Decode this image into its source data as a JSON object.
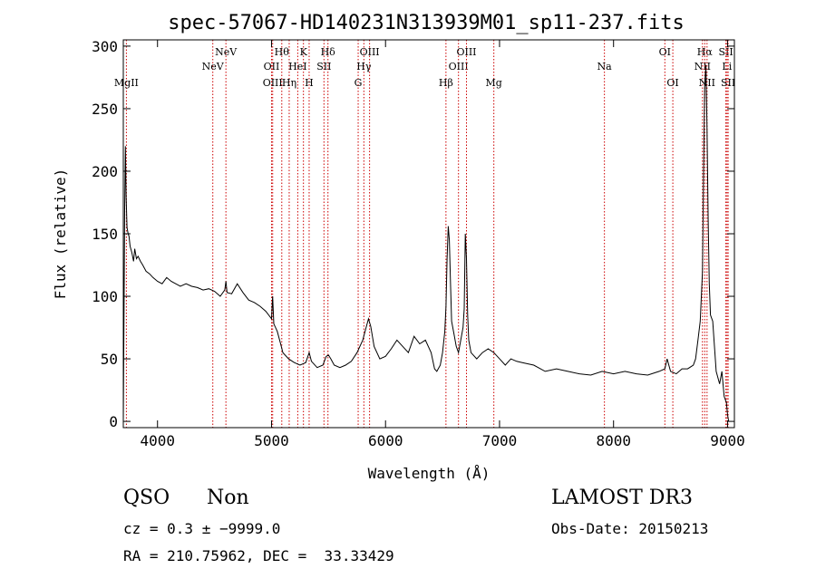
{
  "chart_data": {
    "type": "line",
    "title": "spec-57067-HD140231N313939M01_sp11-237.fits",
    "xlabel": "Wavelength (Å)",
    "ylabel": "Flux (relative)",
    "xlim": [
      3700,
      9060
    ],
    "ylim": [
      -5,
      305
    ],
    "xticks": [
      4000,
      5000,
      6000,
      7000,
      8000,
      9000
    ],
    "yticks": [
      0,
      50,
      100,
      150,
      200,
      250,
      300
    ],
    "grid": false,
    "line_color": "#000000",
    "marker_color": "#cc0000",
    "series": [
      {
        "x": [
          3700,
          3712,
          3718,
          3725,
          3733,
          3742,
          3750,
          3760,
          3775,
          3790,
          3800,
          3815,
          3830,
          3850,
          3870,
          3900,
          3930,
          3960,
          4000,
          4040,
          4080,
          4120,
          4160,
          4200,
          4250,
          4300,
          4350,
          4400,
          4450,
          4500,
          4550,
          4590,
          4600,
          4610,
          4650,
          4700,
          4750,
          4800,
          4850,
          4900,
          4950,
          5000,
          5010,
          5020,
          5050,
          5080,
          5100,
          5150,
          5200,
          5250,
          5300,
          5330,
          5350,
          5400,
          5450,
          5480,
          5500,
          5520,
          5550,
          5600,
          5650,
          5700,
          5750,
          5800,
          5830,
          5850,
          5870,
          5900,
          5950,
          6000,
          6050,
          6100,
          6150,
          6200,
          6250,
          6300,
          6350,
          6400,
          6430,
          6450,
          6480,
          6500,
          6520,
          6530,
          6540,
          6550,
          6560,
          6570,
          6580,
          6600,
          6620,
          6640,
          6660,
          6680,
          6690,
          6700,
          6710,
          6720,
          6730,
          6750,
          6800,
          6850,
          6900,
          6950,
          7000,
          7050,
          7100,
          7150,
          7200,
          7300,
          7400,
          7500,
          7600,
          7700,
          7800,
          7900,
          8000,
          8100,
          8200,
          8300,
          8400,
          8450,
          8470,
          8500,
          8550,
          8600,
          8650,
          8700,
          8720,
          8740,
          8760,
          8780,
          8790,
          8800,
          8810,
          8820,
          8830,
          8840,
          8850,
          8870,
          8900,
          8930,
          8950,
          8970,
          8990,
          9000,
          9010
        ],
        "y": [
          0,
          170,
          220,
          180,
          155,
          150,
          148,
          140,
          135,
          128,
          138,
          130,
          132,
          128,
          125,
          120,
          118,
          115,
          112,
          110,
          115,
          112,
          110,
          108,
          110,
          108,
          107,
          105,
          106,
          104,
          100,
          105,
          112,
          103,
          102,
          110,
          103,
          97,
          95,
          92,
          88,
          82,
          100,
          78,
          72,
          62,
          55,
          50,
          47,
          45,
          47,
          55,
          48,
          43,
          45,
          52,
          53,
          50,
          45,
          43,
          45,
          48,
          55,
          65,
          75,
          82,
          76,
          60,
          50,
          52,
          58,
          65,
          60,
          55,
          68,
          62,
          65,
          55,
          42,
          40,
          45,
          55,
          72,
          92,
          130,
          156,
          145,
          110,
          80,
          70,
          60,
          55,
          65,
          75,
          90,
          150,
          130,
          85,
          65,
          55,
          50,
          55,
          58,
          55,
          50,
          45,
          50,
          48,
          47,
          45,
          40,
          42,
          40,
          38,
          37,
          40,
          38,
          40,
          38,
          37,
          40,
          42,
          50,
          40,
          38,
          42,
          42,
          45,
          50,
          65,
          80,
          120,
          200,
          270,
          285,
          235,
          160,
          110,
          85,
          80,
          40,
          30,
          40,
          20,
          15,
          5,
          0
        ]
      }
    ],
    "lines": [
      {
        "name": "MgII",
        "x": 3727,
        "row": 3
      },
      {
        "name": "NeV",
        "x": 4485,
        "row": 2
      },
      {
        "name": "NeV",
        "x": 4600,
        "row": 1
      },
      {
        "name": "OII",
        "x": 5000,
        "row": 2
      },
      {
        "name": "OIII",
        "x": 5010,
        "row": 3
      },
      {
        "name": "Hθ",
        "x": 5090,
        "row": 1
      },
      {
        "name": "Hη",
        "x": 5155,
        "row": 3
      },
      {
        "name": "HeI",
        "x": 5230,
        "row": 2
      },
      {
        "name": "K",
        "x": 5280,
        "row": 1
      },
      {
        "name": "H",
        "x": 5330,
        "row": 3
      },
      {
        "name": "SII",
        "x": 5460,
        "row": 2
      },
      {
        "name": "Hδ",
        "x": 5495,
        "row": 1
      },
      {
        "name": "G",
        "x": 5760,
        "row": 3
      },
      {
        "name": "Hγ",
        "x": 5810,
        "row": 2
      },
      {
        "name": "OIII",
        "x": 5860,
        "row": 1
      },
      {
        "name": "Hβ",
        "x": 6530,
        "row": 3
      },
      {
        "name": "OIII",
        "x": 6640,
        "row": 2
      },
      {
        "name": "OIII",
        "x": 6710,
        "row": 1
      },
      {
        "name": "Mg",
        "x": 6950,
        "row": 3
      },
      {
        "name": "Na",
        "x": 7920,
        "row": 2
      },
      {
        "name": "OI",
        "x": 8450,
        "row": 1
      },
      {
        "name": "OI",
        "x": 8520,
        "row": 3
      },
      {
        "name": "NII",
        "x": 8780,
        "row": 2
      },
      {
        "name": "Hα",
        "x": 8800,
        "row": 1
      },
      {
        "name": "NII",
        "x": 8820,
        "row": 3
      },
      {
        "name": "SII",
        "x": 8985,
        "row": 1
      },
      {
        "name": "Li",
        "x": 8995,
        "row": 2
      },
      {
        "name": "SII",
        "x": 9005,
        "row": 3
      }
    ]
  },
  "info": {
    "class": "QSO",
    "subclass": "Non",
    "survey": "LAMOST DR3",
    "cz": "cz = 0.3 ± −9999.0",
    "obs_date": "Obs-Date: 20150213",
    "coords": "RA = 210.75962, DEC =  33.33429"
  }
}
